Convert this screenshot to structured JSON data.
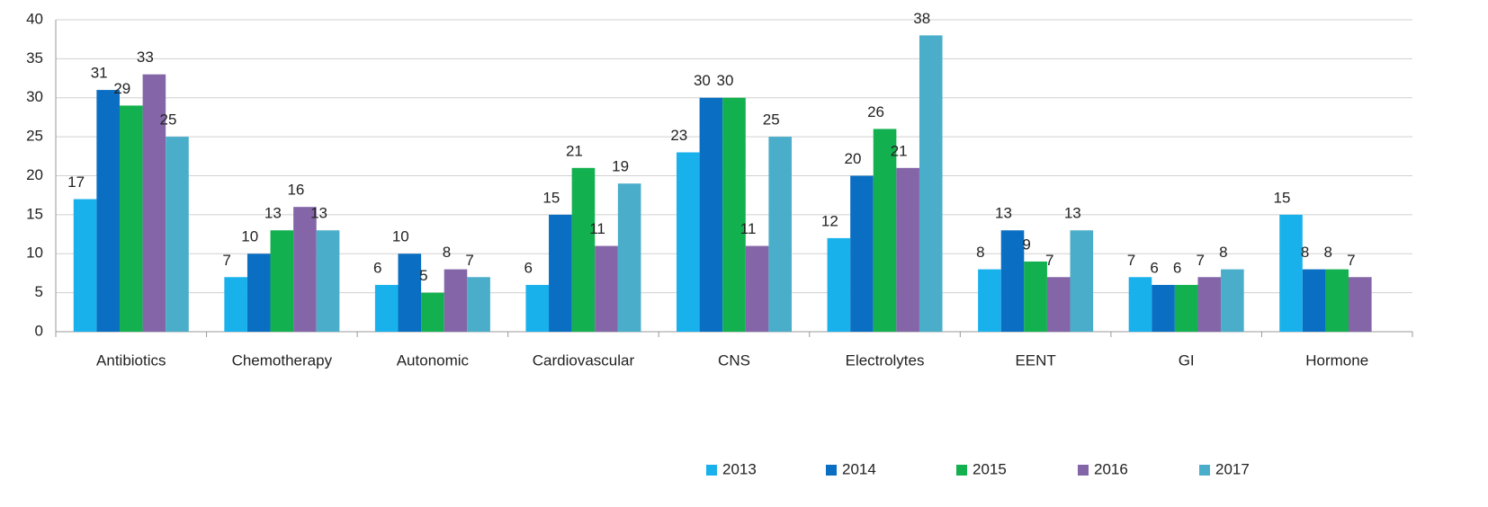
{
  "chart_data": {
    "type": "bar",
    "categories": [
      "Antibiotics",
      "Chemotherapy",
      "Autonomic",
      "Cardiovascular",
      "CNS",
      "Electrolytes",
      "EENT",
      "GI",
      "Hormone"
    ],
    "series": [
      {
        "name": "2013",
        "color": "#19b1ec",
        "values": [
          17,
          7,
          6,
          6,
          23,
          12,
          8,
          7,
          15
        ]
      },
      {
        "name": "2014",
        "color": "#0a6fc2",
        "values": [
          31,
          10,
          10,
          15,
          30,
          20,
          13,
          6,
          8
        ]
      },
      {
        "name": "2015",
        "color": "#12b04e",
        "values": [
          29,
          13,
          5,
          21,
          30,
          26,
          9,
          6,
          8
        ]
      },
      {
        "name": "2016",
        "color": "#8466a8",
        "values": [
          33,
          16,
          8,
          11,
          11,
          21,
          7,
          7,
          7
        ]
      },
      {
        "name": "2017",
        "color": "#4aaecb",
        "values": [
          25,
          13,
          7,
          19,
          25,
          38,
          13,
          8,
          null
        ]
      }
    ],
    "ylim": [
      0,
      40
    ],
    "yticks": [
      0,
      5,
      10,
      15,
      20,
      25,
      30,
      35,
      40
    ],
    "grid": true,
    "legend": "bottom"
  }
}
